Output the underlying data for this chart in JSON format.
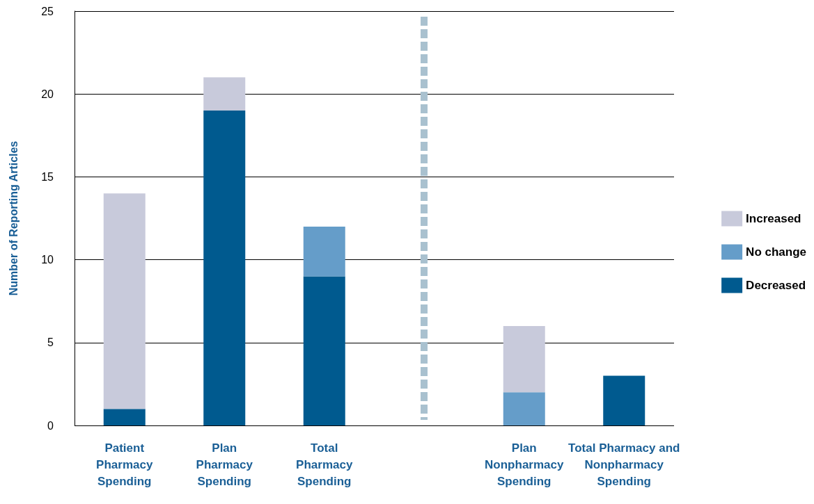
{
  "chart_data": {
    "type": "bar",
    "ylabel": "Number of Reporting Articles",
    "categories": [
      "Patient Pharmacy Spending",
      "Plan Pharmacy Spending",
      "Total Pharmacy Spending",
      null,
      "Plan Nonpharmacy Spending",
      "Total Pharmacy and Nonpharmacy Spending"
    ],
    "series": [
      {
        "name": "Decreased",
        "color": "#005a8f",
        "values": [
          1,
          19,
          9,
          null,
          null,
          3
        ]
      },
      {
        "name": "No change",
        "color": "#659dc9",
        "values": [
          null,
          null,
          3,
          null,
          2,
          null
        ]
      },
      {
        "name": "Increased",
        "color": "#c8cadb",
        "values": [
          13,
          2,
          null,
          null,
          4,
          null
        ]
      }
    ],
    "stacked": true,
    "ylim": [
      0,
      25
    ],
    "yticks": [
      0,
      5,
      10,
      15,
      20,
      25
    ],
    "grid": "y",
    "legend": "right"
  }
}
